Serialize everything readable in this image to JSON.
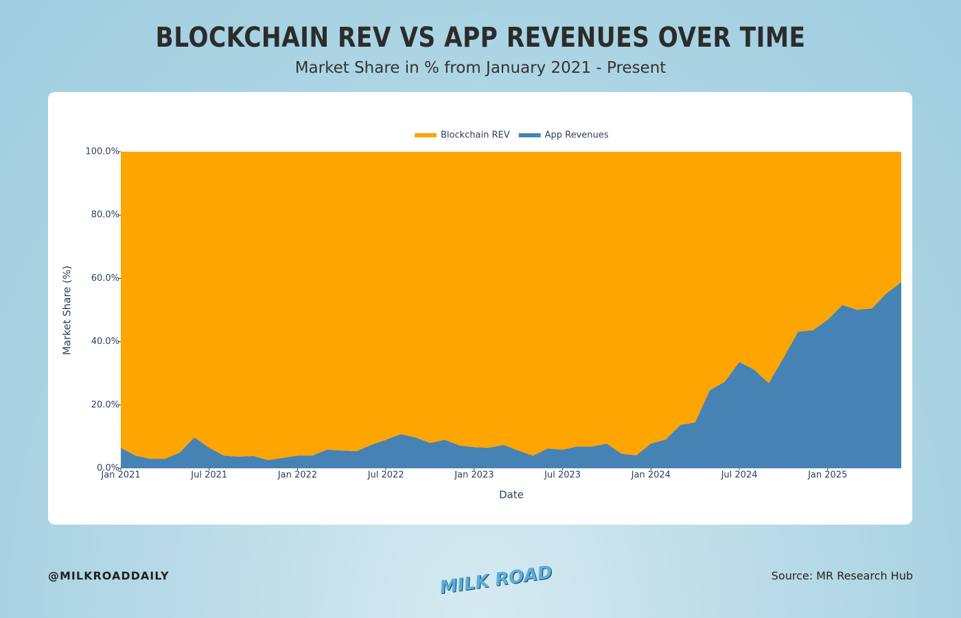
{
  "header": {
    "title": "BLOCKCHAIN REV VS APP REVENUES OVER TIME",
    "subtitle": "Market Share in % from January 2021 - Present"
  },
  "footer": {
    "handle": "@MILKROADDAILY",
    "source": "Source: MR Research Hub",
    "logo": "MILK ROAD"
  },
  "chart_data": {
    "type": "stacked_area",
    "x_label": "Date",
    "y_label": "Market Share (%)",
    "x": [
      "2021-01",
      "2021-02",
      "2021-03",
      "2021-04",
      "2021-05",
      "2021-06",
      "2021-07",
      "2021-08",
      "2021-09",
      "2021-10",
      "2021-11",
      "2021-12",
      "2022-01",
      "2022-02",
      "2022-03",
      "2022-04",
      "2022-05",
      "2022-06",
      "2022-07",
      "2022-08",
      "2022-09",
      "2022-10",
      "2022-11",
      "2022-12",
      "2023-01",
      "2023-02",
      "2023-03",
      "2023-04",
      "2023-05",
      "2023-06",
      "2023-07",
      "2023-08",
      "2023-09",
      "2023-10",
      "2023-11",
      "2023-12",
      "2024-01",
      "2024-02",
      "2024-03",
      "2024-04",
      "2024-05",
      "2024-06",
      "2024-07",
      "2024-08",
      "2024-09",
      "2024-10",
      "2024-11",
      "2024-12",
      "2025-01",
      "2025-02",
      "2025-03",
      "2025-04",
      "2025-05",
      "2025-06"
    ],
    "series": [
      {
        "name": "Blockchain REV",
        "color": "#ffa500",
        "values": [
          93.5,
          96,
          97,
          97,
          95,
          90.2,
          93.5,
          96,
          96.3,
          96.1,
          97.4,
          96.7,
          96,
          96,
          94.1,
          94.4,
          94.6,
          92.6,
          91,
          89.2,
          90.2,
          92,
          91,
          92.8,
          93.3,
          93.5,
          92.6,
          94.4,
          96,
          93.7,
          94.1,
          93.1,
          93.1,
          92.2,
          95.4,
          95.9,
          92.2,
          90.9,
          86.3,
          85.5,
          75.3,
          72.7,
          66.4,
          68.8,
          73.1,
          65.1,
          56.8,
          56.4,
          53.1,
          48.4,
          49.9,
          49.5,
          44.7,
          41.2
        ]
      },
      {
        "name": "App Revenues",
        "color": "#4682b4",
        "values": [
          6.5,
          4,
          3,
          3,
          5,
          9.8,
          6.5,
          4,
          3.7,
          3.9,
          2.6,
          3.3,
          4,
          4,
          5.9,
          5.6,
          5.4,
          7.4,
          9,
          10.8,
          9.8,
          8,
          9,
          7.2,
          6.7,
          6.5,
          7.4,
          5.6,
          4,
          6.3,
          5.9,
          6.9,
          6.9,
          7.8,
          4.6,
          4.1,
          7.8,
          9.1,
          13.7,
          14.5,
          24.7,
          27.3,
          33.6,
          31.2,
          26.9,
          34.9,
          43.2,
          43.6,
          46.9,
          51.6,
          50.1,
          50.5,
          55.3,
          58.8
        ]
      }
    ],
    "xlim": [
      "2021-01",
      "2025-06"
    ],
    "xticks": [
      {
        "value": "2021-01",
        "label": "Jan 2021"
      },
      {
        "value": "2021-07",
        "label": "Jul 2021"
      },
      {
        "value": "2022-01",
        "label": "Jan 2022"
      },
      {
        "value": "2022-07",
        "label": "Jul 2022"
      },
      {
        "value": "2023-01",
        "label": "Jan 2023"
      },
      {
        "value": "2023-07",
        "label": "Jul 2023"
      },
      {
        "value": "2024-01",
        "label": "Jan 2024"
      },
      {
        "value": "2024-07",
        "label": "Jul 2024"
      },
      {
        "value": "2025-01",
        "label": "Jan 2025"
      }
    ],
    "ylim": [
      0,
      100
    ],
    "yticks": [
      {
        "value": 0,
        "label": "0.0%"
      },
      {
        "value": 20,
        "label": "20.0%"
      },
      {
        "value": 40,
        "label": "40.0%"
      },
      {
        "value": 60,
        "label": "60.0%"
      },
      {
        "value": 80,
        "label": "80.0%"
      },
      {
        "value": 100,
        "label": "100.0%"
      }
    ],
    "legend": "top"
  }
}
